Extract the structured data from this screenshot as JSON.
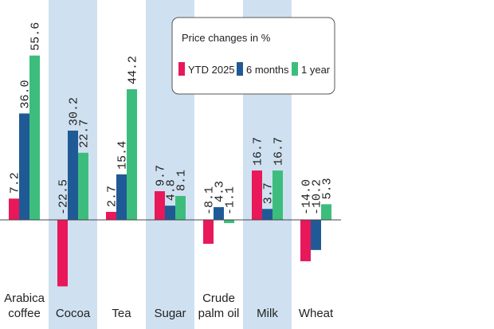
{
  "chart_data": {
    "type": "bar",
    "title": "",
    "xlabel": "",
    "ylabel": "",
    "categories": [
      "Arabica coffee",
      "Cocoa",
      "Tea",
      "Sugar",
      "Crude palm oil",
      "Milk",
      "Wheat"
    ],
    "category_lines": [
      [
        "Arabica",
        "coffee"
      ],
      [
        "Cocoa"
      ],
      [
        "Tea"
      ],
      [
        "Sugar"
      ],
      [
        "Crude",
        "palm oil"
      ],
      [
        "Milk"
      ],
      [
        "Wheat"
      ]
    ],
    "shaded_categories": [
      1,
      3,
      5
    ],
    "series": [
      {
        "name": "YTD 2025",
        "color": "#e8185a",
        "values": [
          7.2,
          -22.5,
          2.7,
          9.7,
          -8.1,
          16.7,
          -14.0
        ]
      },
      {
        "name": "6 months",
        "color": "#1f5a96",
        "values": [
          36.0,
          30.2,
          15.4,
          4.8,
          4.3,
          3.7,
          -10.2
        ]
      },
      {
        "name": "1 year",
        "color": "#3dbd7d",
        "values": [
          55.6,
          22.7,
          44.2,
          8.1,
          -1.1,
          16.7,
          5.3
        ]
      }
    ],
    "value_labels": [
      [
        "7.2",
        "36.0",
        "55.6"
      ],
      [
        "-22.5",
        "30.2",
        "22.7"
      ],
      [
        "2.7",
        "15.4",
        "44.2"
      ],
      [
        "9.7",
        "4.8",
        "8.1"
      ],
      [
        "-8.1",
        "4.3",
        "-1.1"
      ],
      [
        "16.7",
        "3.7",
        "16.7"
      ],
      [
        "-14.0",
        "-10.2",
        "5.3"
      ]
    ],
    "ylim": [
      -25,
      60
    ],
    "legend": {
      "title": "Price changes in %",
      "position": "top-right"
    },
    "colors": {
      "shade": "#cfe1f0",
      "baseline": "#444444"
    }
  }
}
